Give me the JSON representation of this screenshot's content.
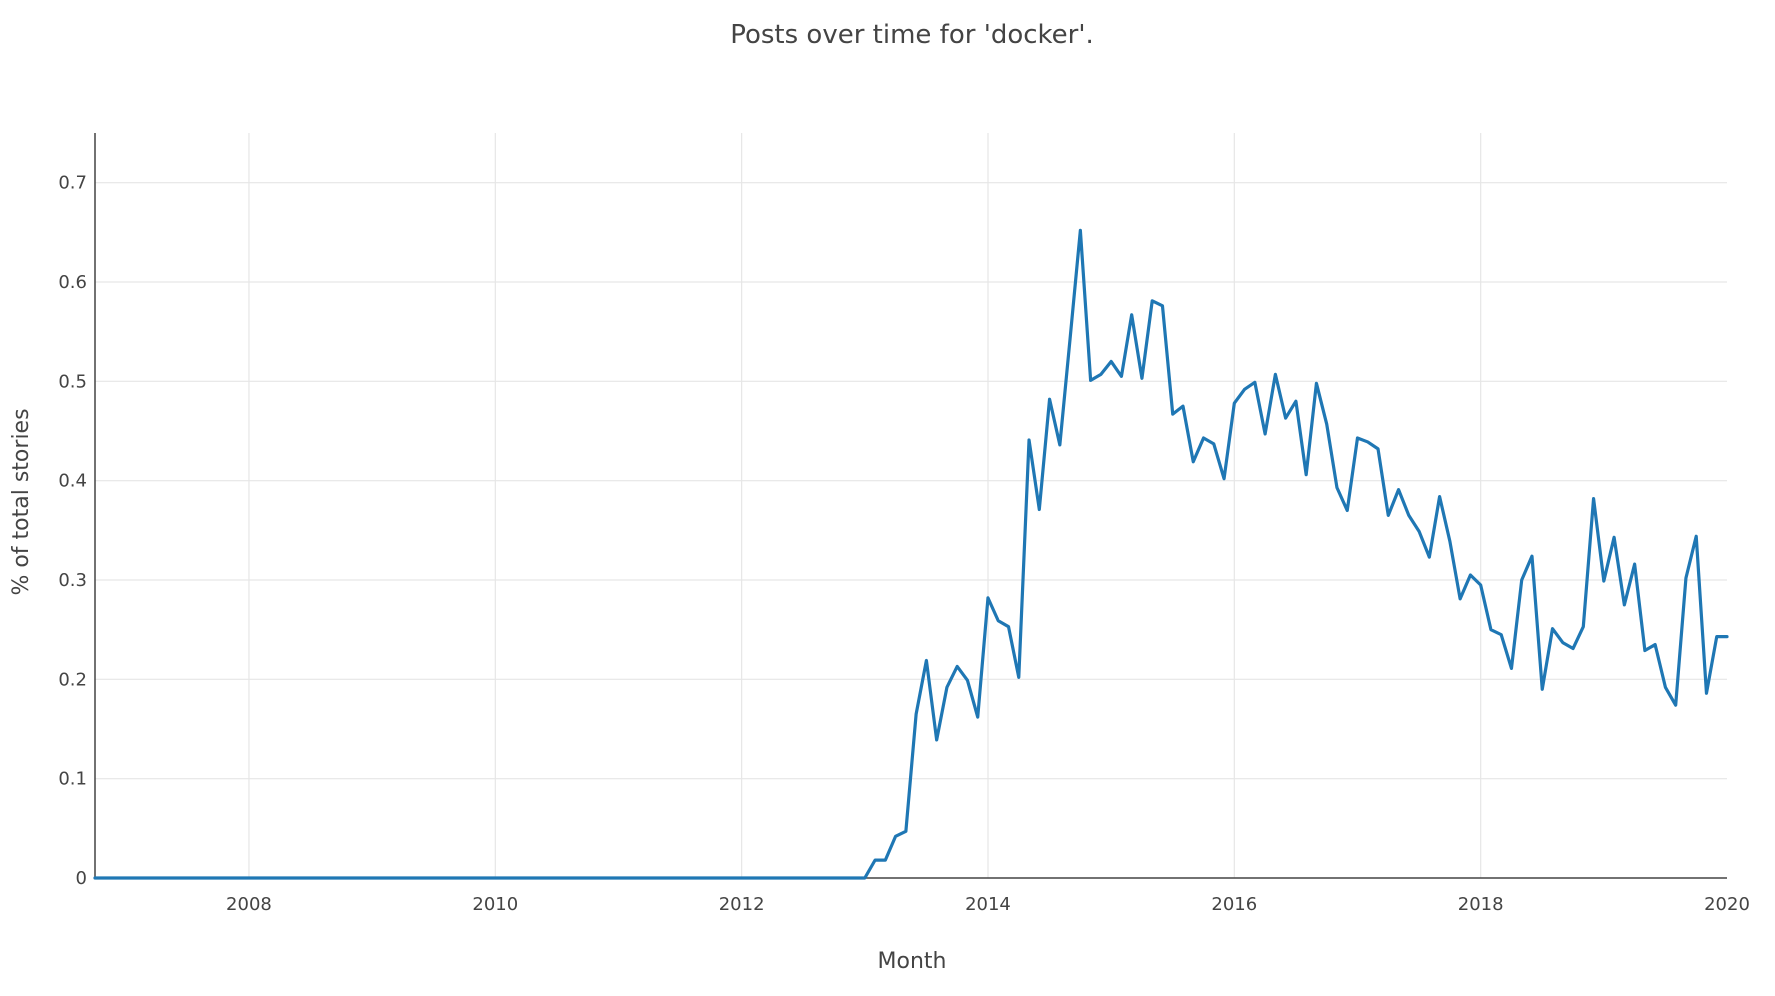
{
  "chart_data": {
    "type": "line",
    "title": "Posts over time for 'docker'.",
    "xlabel": "Month",
    "ylabel": "% of total stories",
    "xlim": [
      "2006-10",
      "2020-01"
    ],
    "ylim": [
      0,
      0.75
    ],
    "x_ticks": [
      "2008",
      "2010",
      "2012",
      "2014",
      "2016",
      "2018",
      "2020"
    ],
    "y_ticks": [
      "0",
      "0.1",
      "0.2",
      "0.3",
      "0.4",
      "0.5",
      "0.6",
      "0.7"
    ],
    "grid": true,
    "series": [
      {
        "color": "#1f77b4",
        "x": [
          "2006-10",
          "2013-01",
          "2013-02",
          "2013-03",
          "2013-04",
          "2013-05",
          "2013-06",
          "2013-07",
          "2013-08",
          "2013-09",
          "2013-10",
          "2013-11",
          "2013-12",
          "2014-01",
          "2014-02",
          "2014-03",
          "2014-04",
          "2014-05",
          "2014-06",
          "2014-07",
          "2014-08",
          "2014-09",
          "2014-10",
          "2014-11",
          "2014-12",
          "2015-01",
          "2015-02",
          "2015-03",
          "2015-04",
          "2015-05",
          "2015-06",
          "2015-07",
          "2015-08",
          "2015-09",
          "2015-10",
          "2015-11",
          "2015-12",
          "2016-01",
          "2016-02",
          "2016-03",
          "2016-04",
          "2016-05",
          "2016-06",
          "2016-07",
          "2016-08",
          "2016-09",
          "2016-10",
          "2016-11",
          "2016-12",
          "2017-01",
          "2017-02",
          "2017-03",
          "2017-04",
          "2017-05",
          "2017-06",
          "2017-07",
          "2017-08",
          "2017-09",
          "2017-10",
          "2017-11",
          "2017-12",
          "2018-01",
          "2018-02",
          "2018-03",
          "2018-04",
          "2018-05",
          "2018-06",
          "2018-07",
          "2018-08",
          "2018-09",
          "2018-10",
          "2018-11",
          "2018-12",
          "2019-01",
          "2019-02",
          "2019-03",
          "2019-04",
          "2019-05",
          "2019-06",
          "2019-07",
          "2019-08",
          "2019-09",
          "2019-10",
          "2019-11",
          "2019-12",
          "2020-01"
        ],
        "y": [
          0,
          0,
          0.018,
          0.018,
          0.042,
          0.047,
          0.165,
          0.219,
          0.139,
          0.192,
          0.213,
          0.199,
          0.162,
          0.282,
          0.259,
          0.253,
          0.202,
          0.441,
          0.371,
          0.482,
          0.436,
          0.543,
          0.652,
          0.501,
          0.507,
          0.52,
          0.505,
          0.567,
          0.503,
          0.581,
          0.576,
          0.467,
          0.475,
          0.419,
          0.443,
          0.437,
          0.402,
          0.478,
          0.492,
          0.499,
          0.447,
          0.507,
          0.463,
          0.48,
          0.406,
          0.498,
          0.457,
          0.393,
          0.37,
          0.443,
          0.439,
          0.432,
          0.365,
          0.391,
          0.365,
          0.349,
          0.323,
          0.384,
          0.339,
          0.281,
          0.305,
          0.295,
          0.25,
          0.245,
          0.211,
          0.3,
          0.324,
          0.19,
          0.251,
          0.237,
          0.231,
          0.253,
          0.382,
          0.299,
          0.343,
          0.275,
          0.316,
          0.229,
          0.235,
          0.192,
          0.174,
          0.302,
          0.344,
          0.186,
          0.243,
          0.243
        ]
      }
    ]
  }
}
